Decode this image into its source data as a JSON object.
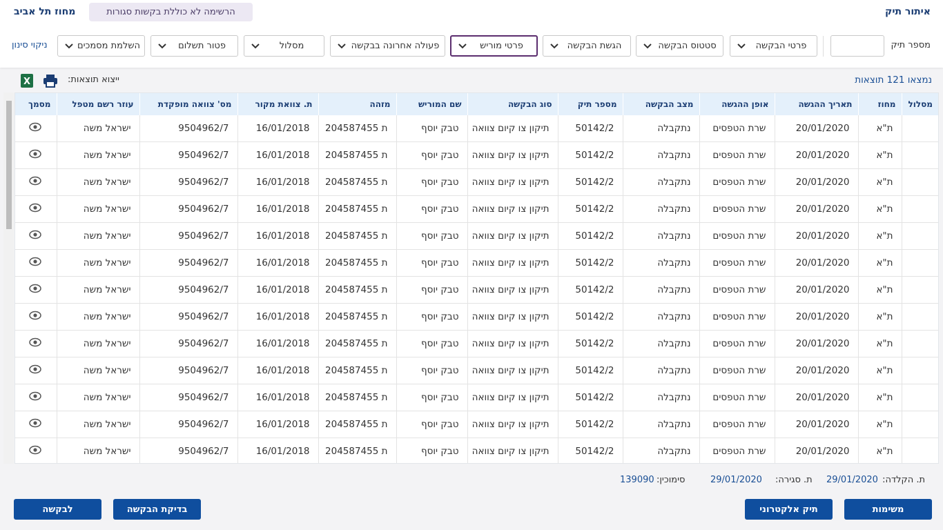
{
  "header": {
    "title": "איתור תיק",
    "district": "מחוז תל אביב",
    "notice": "הרשימה לא כוללת בקשות סגורות"
  },
  "filters": {
    "case_number_label": "מספר תיק",
    "dropdowns": [
      "פרטי הבקשה",
      "סטטוס הבקשה",
      "הגשת הבקשה",
      "פרטי מוריש",
      "פעולה אחרונה בבקשה",
      "מסלול",
      "פטור תשלום",
      "השלמת מסמכים"
    ],
    "clear": "ניקוי סינון"
  },
  "results": {
    "count": "נמצאו 121 תוצאות",
    "export_label": "ייצוא תוצאות:"
  },
  "table": {
    "columns": [
      "מסלול",
      "מחוז",
      "תאריך ההגשה",
      "אופן ההגשה",
      "מצב הבקשה",
      "מספר תיק",
      "סוג הבקשה",
      "שם המוריש",
      "מזהה",
      "ת. צוואת מקור",
      "מס' צוואה מופקדת",
      "עוזר רשם מטפל",
      "מסמך"
    ],
    "rows": [
      [
        "ת\"א",
        "20/01/2020",
        "שרת הטפסים",
        "נתקבלה",
        "50142/2",
        "תיקון צו קיום צוואה",
        "טבק יוסף",
        "ת 204587455",
        "16/01/2018",
        "9504962/7",
        "ישראל משה"
      ],
      [
        "ת\"א",
        "20/01/2020",
        "שרת הטפסים",
        "נתקבלה",
        "50142/2",
        "תיקון צו קיום צוואה",
        "טבק יוסף",
        "ת 204587455",
        "16/01/2018",
        "9504962/7",
        "ישראל משה"
      ],
      [
        "ת\"א",
        "20/01/2020",
        "שרת הטפסים",
        "נתקבלה",
        "50142/2",
        "תיקון צו קיום צוואה",
        "טבק יוסף",
        "ת 204587455",
        "16/01/2018",
        "9504962/7",
        "ישראל משה"
      ],
      [
        "ת\"א",
        "20/01/2020",
        "שרת הטפסים",
        "נתקבלה",
        "50142/2",
        "תיקון צו קיום צוואה",
        "טבק יוסף",
        "ת 204587455",
        "16/01/2018",
        "9504962/7",
        "ישראל משה"
      ],
      [
        "ת\"א",
        "20/01/2020",
        "שרת הטפסים",
        "נתקבלה",
        "50142/2",
        "תיקון צו קיום צוואה",
        "טבק יוסף",
        "ת 204587455",
        "16/01/2018",
        "9504962/7",
        "ישראל משה"
      ],
      [
        "ת\"א",
        "20/01/2020",
        "שרת הטפסים",
        "נתקבלה",
        "50142/2",
        "תיקון צו קיום צוואה",
        "טבק יוסף",
        "ת 204587455",
        "16/01/2018",
        "9504962/7",
        "ישראל משה"
      ],
      [
        "ת\"א",
        "20/01/2020",
        "שרת הטפסים",
        "נתקבלה",
        "50142/2",
        "תיקון צו קיום צוואה",
        "טבק יוסף",
        "ת 204587455",
        "16/01/2018",
        "9504962/7",
        "ישראל משה"
      ],
      [
        "ת\"א",
        "20/01/2020",
        "שרת הטפסים",
        "נתקבלה",
        "50142/2",
        "תיקון צו קיום צוואה",
        "טבק יוסף",
        "ת 204587455",
        "16/01/2018",
        "9504962/7",
        "ישראל משה"
      ],
      [
        "ת\"א",
        "20/01/2020",
        "שרת הטפסים",
        "נתקבלה",
        "50142/2",
        "תיקון צו קיום צוואה",
        "טבק יוסף",
        "ת 204587455",
        "16/01/2018",
        "9504962/7",
        "ישראל משה"
      ],
      [
        "ת\"א",
        "20/01/2020",
        "שרת הטפסים",
        "נתקבלה",
        "50142/2",
        "תיקון צו קיום צוואה",
        "טבק יוסף",
        "ת 204587455",
        "16/01/2018",
        "9504962/7",
        "ישראל משה"
      ],
      [
        "ת\"א",
        "20/01/2020",
        "שרת הטפסים",
        "נתקבלה",
        "50142/2",
        "תיקון צו קיום צוואה",
        "טבק יוסף",
        "ת 204587455",
        "16/01/2018",
        "9504962/7",
        "ישראל משה"
      ],
      [
        "ת\"א",
        "20/01/2020",
        "שרת הטפסים",
        "נתקבלה",
        "50142/2",
        "תיקון צו קיום צוואה",
        "טבק יוסף",
        "ת 204587455",
        "16/01/2018",
        "9504962/7",
        "ישראל משה"
      ],
      [
        "ת\"א",
        "20/01/2020",
        "שרת הטפסים",
        "נתקבלה",
        "50142/2",
        "תיקון צו קיום צוואה",
        "טבק יוסף",
        "ת 204587455",
        "16/01/2018",
        "9504962/7",
        "ישראל משה"
      ]
    ]
  },
  "footer": {
    "typed_label": "ת. הקלדה:",
    "typed_date": "29/01/2020",
    "closed_label": "ת. סגירה:",
    "closed_date": "29/01/2020",
    "ref_label": "סימוכין:",
    "ref_value": "139090"
  },
  "buttons": [
    "משימות",
    "תיק אלקטרוני",
    "בדיקת הבקשה",
    "לבקשה"
  ]
}
